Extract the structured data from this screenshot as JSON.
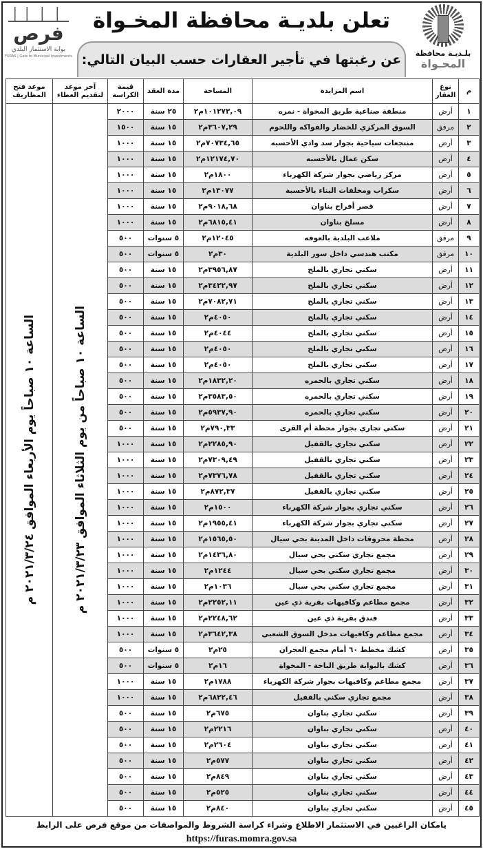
{
  "header": {
    "title": "تعلن بلديـة محافظة المخـواة",
    "subtitle": "عن رغبتها في تأجير العقارات حسب البيان التالي:"
  },
  "logo_right": {
    "line1": "بلـديـة محافظة",
    "line2": "المحـواة"
  },
  "logo_left": {
    "name": "فرص",
    "sub": "بوابة الاستثمار البلدي",
    "en": "FURAS | Gate to Municipal Investments"
  },
  "table": {
    "columns": [
      "م",
      "نوع العقار",
      "اسم المزايدة",
      "المساحة",
      "مدة العقد",
      "قيمة الكراسة",
      "آخر موعد لتقديم العطاء",
      "موعد فتح المظاريف"
    ],
    "last_submission": "الساعة ١٠ صباحاً من يوم الثلاثاء الموافق ٢٠٢١/٣/٢٣ م",
    "opening": "الساعة ١٠ صباحاً يوم الأربعاء الموافق ٢٠٢١/٣/٢٤ م",
    "rows": [
      [
        "١",
        "أرض",
        "منطقة صناعية طريق المخواة - نمره",
        "١٠١٢٧٣,٠٩م٢",
        "٢٥ سنة",
        "٢٠٠٠"
      ],
      [
        "٢",
        "مرفق",
        "السوق المركزي للخضار والفواكه واللحوم",
        "٣٦٠٧,٢٩م٢",
        "١٥ سنة",
        "١٥٠٠"
      ],
      [
        "٣",
        "أرض",
        "منتجعات سياحية بجوار سد وادي الأحسبه",
        "٧٠٧٣٤,٦٥م٢",
        "١٥ سنة",
        "١٠٠٠"
      ],
      [
        "٤",
        "أرض",
        "سكن عمال بالأحسبه",
        "١٢١٧٤,٧٠م٢",
        "١٥ سنة",
        "١٠٠٠"
      ],
      [
        "٥",
        "أرض",
        "مركز رياضي بجوار شركة الكهرباء",
        "١٨٠٠م٢",
        "١٥ سنة",
        "١٠٠٠"
      ],
      [
        "٦",
        "أرض",
        "سكراب ومخلفات البناء بالأحسبة",
        "١٣٠٧٧م٢",
        "١٥ سنة",
        "١٠٠٠"
      ],
      [
        "٧",
        "أرض",
        "قصر أفراح بناوان",
        "٩٠١٨,٦٨م٢",
        "١٥ سنة",
        "١٠٠٠"
      ],
      [
        "٨",
        "أرض",
        "مسلخ بناوان",
        "٦٨١٥,٤١م٢",
        "١٥ سنة",
        "١٠٠٠"
      ],
      [
        "٩",
        "مرفق",
        "ملاعب البلدية بالعوفه",
        "١٢٠٤٥م٢",
        "٥ سنوات",
        "٥٠٠"
      ],
      [
        "١٠",
        "مرفق",
        "مكتب هندسي داخل سور البلدية",
        "٣٠م٢",
        "٥ سنوات",
        "٥٠٠"
      ],
      [
        "١١",
        "أرض",
        "سكني تجاري بالملح",
        "٣٩٥٦,٨٧م٢",
        "١٥ سنة",
        "٥٠٠"
      ],
      [
        "١٢",
        "أرض",
        "سكني تجاري بالملح",
        "٣٤٢٢,٩٧م٢",
        "١٥ سنة",
        "٥٠٠"
      ],
      [
        "١٣",
        "أرض",
        "سكني تجاري بالملح",
        "٧٠٨٢,٧١م٢",
        "١٥ سنة",
        "٥٠٠"
      ],
      [
        "١٤",
        "أرض",
        "سكني تجاري بالملح",
        "٤٠٥٠م٢",
        "١٥ سنة",
        "٥٠٠"
      ],
      [
        "١٥",
        "أرض",
        "سكني تجاري بالملح",
        "٤٠٤٤م٢",
        "١٥ سنة",
        "٥٠٠"
      ],
      [
        "١٦",
        "أرض",
        "سكني تجاري بالملح",
        "٤٠٥٠م٢",
        "١٥ سنة",
        "٥٠٠"
      ],
      [
        "١٧",
        "أرض",
        "سكني تجاري بالملح",
        "٤٠٥٠م٢",
        "١٥ سنة",
        "٥٠٠"
      ],
      [
        "١٨",
        "أرض",
        "سكني تجاري بالحمره",
        "١٨٣٢,٢٠م٢",
        "١٥ سنة",
        "٥٠٠"
      ],
      [
        "١٩",
        "أرض",
        "سكني تجاري بالحمره",
        "٣٥٨٣,٥٠م٢",
        "١٥ سنة",
        "٥٠٠"
      ],
      [
        "٢٠",
        "أرض",
        "سكني تجاري بالحمره",
        "٥٩٣٧,٩٠م٢",
        "١٥ سنة",
        "٥٠٠"
      ],
      [
        "٢١",
        "أرض",
        "سكني تجاري بجوار محطة أم القرى",
        "٧٩٠,٣٣م٢",
        "١٥ سنة",
        "٥٠٠"
      ],
      [
        "٢٢",
        "أرض",
        "سكني تجاري بالقفيل",
        "٢٢٨٥,٩٠م٢",
        "١٥ سنة",
        "١٠٠٠"
      ],
      [
        "٢٣",
        "أرض",
        "سكني تجاري بالقفيل",
        "٧٣٠٩,٤٩م٢",
        "١٥ سنة",
        "١٠٠٠"
      ],
      [
        "٢٤",
        "أرض",
        "سكني تجاري بالقفيل",
        "٧٣٧٦,٧٨م٢",
        "١٥ سنة",
        "١٠٠٠"
      ],
      [
        "٢٥",
        "أرض",
        "سكني تجاري بالقفيل",
        "٨٧٢,٣٧م٢",
        "١٥ سنة",
        "١٠٠٠"
      ],
      [
        "٢٦",
        "أرض",
        "سكني تجاري بجوار شركة الكهرباء",
        "١٥٠٠م٢",
        "١٥ سنة",
        "١٠٠٠"
      ],
      [
        "٢٧",
        "أرض",
        "سكني تجاري بجوار شركة الكهرباء",
        "١٩٥٥,٤١م٢",
        "١٥ سنة",
        "١٠٠٠"
      ],
      [
        "٢٨",
        "أرض",
        "محطة محروقات داخل المدينة بحي سيال",
        "١٥٦٥,٥٠م٢",
        "١٥ سنة",
        "١٠٠٠"
      ],
      [
        "٢٩",
        "أرض",
        "مجمع تجاري سكني بحي سيال",
        "١٤٣٦,٨٠م٢",
        "١٥ سنة",
        "١٠٠٠"
      ],
      [
        "٣٠",
        "أرض",
        "مجمع تجاري سكني بحي سيال",
        "١٢٤٤م٢",
        "١٥ سنة",
        "١٠٠٠"
      ],
      [
        "٣١",
        "أرض",
        "مجمع تجاري سكني بحي سيال",
        "١٠٣٦م٢",
        "١٥ سنة",
        "١٠٠٠"
      ],
      [
        "٣٢",
        "أرض",
        "مجمع مطاعم وكافيهات بقرية ذي عين",
        "٢٢٥٢,١١م٢",
        "١٥ سنة",
        "١٠٠٠"
      ],
      [
        "٣٣",
        "أرض",
        "فندق بقرية ذي عين",
        "٢٢٤٨,٦٢م٢",
        "١٥ سنة",
        "١٠٠٠"
      ],
      [
        "٣٤",
        "أرض",
        "مجمع مطاعم وكافيهات مدخل السوق الشعبي",
        "٣٦٤٢,٣٨م٢",
        "١٥ سنة",
        "١٠٠٠"
      ],
      [
        "٣٥",
        "أرض",
        "كشك مخطط ٦٠ أمام مجمع العجران",
        "٢٥م٢",
        "٥ سنوات",
        "٥٠٠"
      ],
      [
        "٣٦",
        "أرض",
        "كشك بالبوابة طريق الباحة - المخواة",
        "١٦م٢",
        "٥ سنوات",
        "٥٠٠"
      ],
      [
        "٣٧",
        "أرض",
        "مجمع مطاعم وكافيهات بجوار شركة الكهرباء",
        "١٧٨٨م٢",
        "١٥ سنة",
        "١٠٠٠"
      ],
      [
        "٣٨",
        "أرض",
        "مجمع تجاري سكني بالقفيل",
        "٦٨٢٢,٤٦م٢",
        "١٥ سنة",
        "١٠٠٠"
      ],
      [
        "٣٩",
        "أرض",
        "سكني تجاري بناوان",
        "٦٧٥م٢",
        "١٥ سنة",
        "٥٠٠"
      ],
      [
        "٤٠",
        "أرض",
        "سكني تجاري بناوان",
        "٢٢١٦م٢",
        "١٥ سنة",
        "٥٠٠"
      ],
      [
        "٤١",
        "أرض",
        "سكني تجاري بناوان",
        "٢٦٠٤م٢",
        "١٥ سنة",
        "٥٠٠"
      ],
      [
        "٤٢",
        "أرض",
        "سكني تجاري بناوان",
        "٥٧٧م٢",
        "١٥ سنة",
        "٥٠٠"
      ],
      [
        "٤٣",
        "أرض",
        "سكني تجاري بناوان",
        "٨٤٩م٢",
        "١٥ سنة",
        "٥٠٠"
      ],
      [
        "٤٤",
        "أرض",
        "سكني تجاري بناوان",
        "٥٢٥م٢",
        "١٥ سنة",
        "٥٠٠"
      ],
      [
        "٤٥",
        "أرض",
        "سكني تجاري بناوان",
        "٨٤٠م٢",
        "١٥ سنة",
        "٥٠٠"
      ]
    ]
  },
  "footer": {
    "text": "يامكان الراغبين في الاستثمار الاطلاع وشراء كراسة الشروط والمواصفات من موقع فرص على الرابط",
    "url": "https://furas.momra.gov.sa"
  },
  "colors": {
    "row_shade": "#dcdcdc",
    "text": "#111111"
  }
}
